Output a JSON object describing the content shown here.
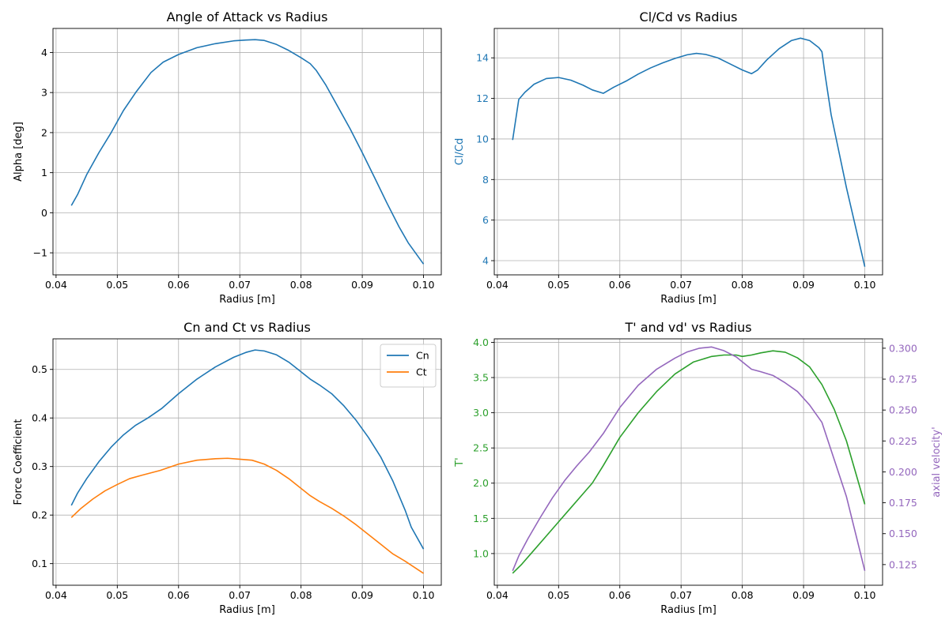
{
  "figure": {
    "background": "#ffffff",
    "grid_color": "#b0b0b0"
  },
  "chart_data": [
    {
      "type": "line",
      "title": "Angle of Attack vs Radius",
      "xlabel": "Radius [m]",
      "ylabel": "Alpha [deg]",
      "xlim": [
        0.0395,
        0.1029
      ],
      "ylim": [
        -1.55,
        4.6
      ],
      "xticks": [
        0.04,
        0.05,
        0.06,
        0.07,
        0.08,
        0.09,
        0.1
      ],
      "xtick_labels": [
        "0.04",
        "0.05",
        "0.06",
        "0.07",
        "0.08",
        "0.09",
        "0.10"
      ],
      "yticks": [
        -1,
        0,
        1,
        2,
        3,
        4
      ],
      "ytick_labels": [
        "−1",
        "0",
        "1",
        "2",
        "3",
        "4"
      ],
      "grid": true,
      "series": [
        {
          "color": "#1f77b4",
          "x": [
            0.0425,
            0.0435,
            0.045,
            0.047,
            0.049,
            0.051,
            0.053,
            0.0555,
            0.0575,
            0.06,
            0.063,
            0.066,
            0.069,
            0.071,
            0.0725,
            0.074,
            0.076,
            0.078,
            0.08,
            0.0815,
            0.0825,
            0.084,
            0.086,
            0.088,
            0.09,
            0.092,
            0.094,
            0.096,
            0.0975,
            0.1
          ],
          "y": [
            0.18,
            0.45,
            0.95,
            1.5,
            2.0,
            2.55,
            3.0,
            3.5,
            3.76,
            3.95,
            4.12,
            4.22,
            4.29,
            4.31,
            4.32,
            4.3,
            4.2,
            4.05,
            3.87,
            3.72,
            3.55,
            3.2,
            2.65,
            2.1,
            1.5,
            0.88,
            0.25,
            -0.35,
            -0.75,
            -1.28
          ]
        }
      ]
    },
    {
      "type": "line",
      "title": "Cl/Cd vs Radius",
      "xlabel": "Radius [m]",
      "ylabel": "Cl/Cd",
      "ylabel_color": "#1f77b4",
      "xlim": [
        0.0395,
        0.1029
      ],
      "ylim": [
        3.3,
        15.45
      ],
      "xticks": [
        0.04,
        0.05,
        0.06,
        0.07,
        0.08,
        0.09,
        0.1
      ],
      "xtick_labels": [
        "0.04",
        "0.05",
        "0.06",
        "0.07",
        "0.08",
        "0.09",
        "0.10"
      ],
      "yticks": [
        4,
        6,
        8,
        10,
        12,
        14
      ],
      "ytick_labels": [
        "4",
        "6",
        "8",
        "10",
        "12",
        "14"
      ],
      "ytick_color": "#1f77b4",
      "grid": true,
      "series": [
        {
          "color": "#1f77b4",
          "x": [
            0.0425,
            0.0435,
            0.0445,
            0.046,
            0.048,
            0.05,
            0.052,
            0.054,
            0.0555,
            0.0573,
            0.059,
            0.061,
            0.063,
            0.065,
            0.067,
            0.069,
            0.071,
            0.0725,
            0.074,
            0.076,
            0.078,
            0.08,
            0.0815,
            0.0825,
            0.084,
            0.086,
            0.088,
            0.0895,
            0.091,
            0.0925,
            0.093,
            0.0935,
            0.0945,
            0.097,
            0.1
          ],
          "y": [
            9.95,
            11.95,
            12.3,
            12.7,
            12.98,
            13.03,
            12.9,
            12.65,
            12.42,
            12.25,
            12.55,
            12.85,
            13.2,
            13.5,
            13.75,
            13.97,
            14.15,
            14.22,
            14.17,
            14.0,
            13.7,
            13.4,
            13.22,
            13.4,
            13.9,
            14.45,
            14.85,
            14.97,
            14.85,
            14.5,
            14.3,
            13.2,
            11.2,
            7.6,
            3.7
          ]
        }
      ]
    },
    {
      "type": "line",
      "title": "Cn and Ct vs Radius",
      "xlabel": "Radius [m]",
      "ylabel": "Force Coefficient",
      "xlim": [
        0.0395,
        0.1029
      ],
      "ylim": [
        0.0555,
        0.563
      ],
      "xticks": [
        0.04,
        0.05,
        0.06,
        0.07,
        0.08,
        0.09,
        0.1
      ],
      "xtick_labels": [
        "0.04",
        "0.05",
        "0.06",
        "0.07",
        "0.08",
        "0.09",
        "0.10"
      ],
      "yticks": [
        0.1,
        0.2,
        0.3,
        0.4,
        0.5
      ],
      "ytick_labels": [
        "0.1",
        "0.2",
        "0.3",
        "0.4",
        "0.5"
      ],
      "grid": true,
      "legend": "top-right",
      "series": [
        {
          "name": "Cn",
          "color": "#1f77b4",
          "x": [
            0.0425,
            0.0435,
            0.045,
            0.047,
            0.049,
            0.051,
            0.053,
            0.055,
            0.0573,
            0.06,
            0.063,
            0.066,
            0.069,
            0.071,
            0.0725,
            0.074,
            0.076,
            0.078,
            0.08,
            0.0815,
            0.083,
            0.085,
            0.087,
            0.089,
            0.091,
            0.093,
            0.095,
            0.097,
            0.098,
            0.1
          ],
          "y": [
            0.22,
            0.245,
            0.275,
            0.31,
            0.34,
            0.365,
            0.385,
            0.4,
            0.42,
            0.45,
            0.48,
            0.505,
            0.525,
            0.535,
            0.54,
            0.538,
            0.53,
            0.515,
            0.495,
            0.48,
            0.468,
            0.45,
            0.425,
            0.395,
            0.36,
            0.32,
            0.27,
            0.21,
            0.175,
            0.13
          ]
        },
        {
          "name": "Ct",
          "color": "#ff7f0e",
          "x": [
            0.0425,
            0.044,
            0.046,
            0.048,
            0.05,
            0.052,
            0.054,
            0.057,
            0.06,
            0.063,
            0.066,
            0.068,
            0.07,
            0.072,
            0.074,
            0.076,
            0.078,
            0.08,
            0.0815,
            0.083,
            0.085,
            0.087,
            0.089,
            0.091,
            0.093,
            0.095,
            0.097,
            0.1
          ],
          "y": [
            0.195,
            0.213,
            0.233,
            0.25,
            0.263,
            0.275,
            0.282,
            0.292,
            0.305,
            0.313,
            0.316,
            0.317,
            0.315,
            0.313,
            0.305,
            0.292,
            0.275,
            0.255,
            0.24,
            0.228,
            0.214,
            0.198,
            0.18,
            0.16,
            0.14,
            0.12,
            0.105,
            0.08
          ]
        }
      ]
    },
    {
      "type": "line",
      "title": "T' and vd' vs Radius",
      "xlabel": "Radius [m]",
      "ylabel": "T'",
      "ylabel_color": "#2ca02c",
      "y2label": "axial velocity'",
      "y2label_color": "#9467bd",
      "xlim": [
        0.0395,
        0.1029
      ],
      "ylim": [
        0.55,
        4.05
      ],
      "y2lim": [
        0.1083,
        0.3076
      ],
      "xticks": [
        0.04,
        0.05,
        0.06,
        0.07,
        0.08,
        0.09,
        0.1
      ],
      "xtick_labels": [
        "0.04",
        "0.05",
        "0.06",
        "0.07",
        "0.08",
        "0.09",
        "0.10"
      ],
      "yticks": [
        1.0,
        1.5,
        2.0,
        2.5,
        3.0,
        3.5,
        4.0
      ],
      "ytick_labels": [
        "1.0",
        "1.5",
        "2.0",
        "2.5",
        "3.0",
        "3.5",
        "4.0"
      ],
      "y2ticks": [
        0.125,
        0.15,
        0.175,
        0.2,
        0.225,
        0.25,
        0.275,
        0.3
      ],
      "y2tick_labels": [
        "0.125",
        "0.150",
        "0.175",
        "0.200",
        "0.225",
        "0.250",
        "0.275",
        "0.300"
      ],
      "grid": true,
      "series": [
        {
          "color": "#2ca02c",
          "axis": "left",
          "x": [
            0.0425,
            0.044,
            0.046,
            0.048,
            0.05,
            0.052,
            0.054,
            0.0555,
            0.0573,
            0.06,
            0.063,
            0.066,
            0.069,
            0.072,
            0.075,
            0.077,
            0.079,
            0.08,
            0.0815,
            0.083,
            0.085,
            0.087,
            0.089,
            0.091,
            0.093,
            0.095,
            0.097,
            0.1
          ],
          "y": [
            0.72,
            0.85,
            1.05,
            1.25,
            1.45,
            1.65,
            1.85,
            2.0,
            2.25,
            2.65,
            3.0,
            3.3,
            3.55,
            3.72,
            3.8,
            3.82,
            3.82,
            3.8,
            3.82,
            3.85,
            3.88,
            3.86,
            3.78,
            3.65,
            3.4,
            3.05,
            2.6,
            1.7
          ]
        },
        {
          "color": "#9467bd",
          "axis": "right",
          "x": [
            0.0425,
            0.0435,
            0.045,
            0.047,
            0.049,
            0.051,
            0.053,
            0.055,
            0.0573,
            0.06,
            0.063,
            0.066,
            0.069,
            0.071,
            0.073,
            0.075,
            0.077,
            0.079,
            0.08,
            0.0815,
            0.083,
            0.085,
            0.087,
            0.089,
            0.091,
            0.093,
            0.095,
            0.097,
            0.0985,
            0.1
          ],
          "y": [
            0.12,
            0.132,
            0.146,
            0.163,
            0.179,
            0.193,
            0.205,
            0.216,
            0.231,
            0.252,
            0.27,
            0.283,
            0.292,
            0.297,
            0.3,
            0.301,
            0.298,
            0.293,
            0.289,
            0.283,
            0.281,
            0.278,
            0.272,
            0.265,
            0.254,
            0.24,
            0.21,
            0.18,
            0.15,
            0.12
          ]
        }
      ]
    }
  ]
}
